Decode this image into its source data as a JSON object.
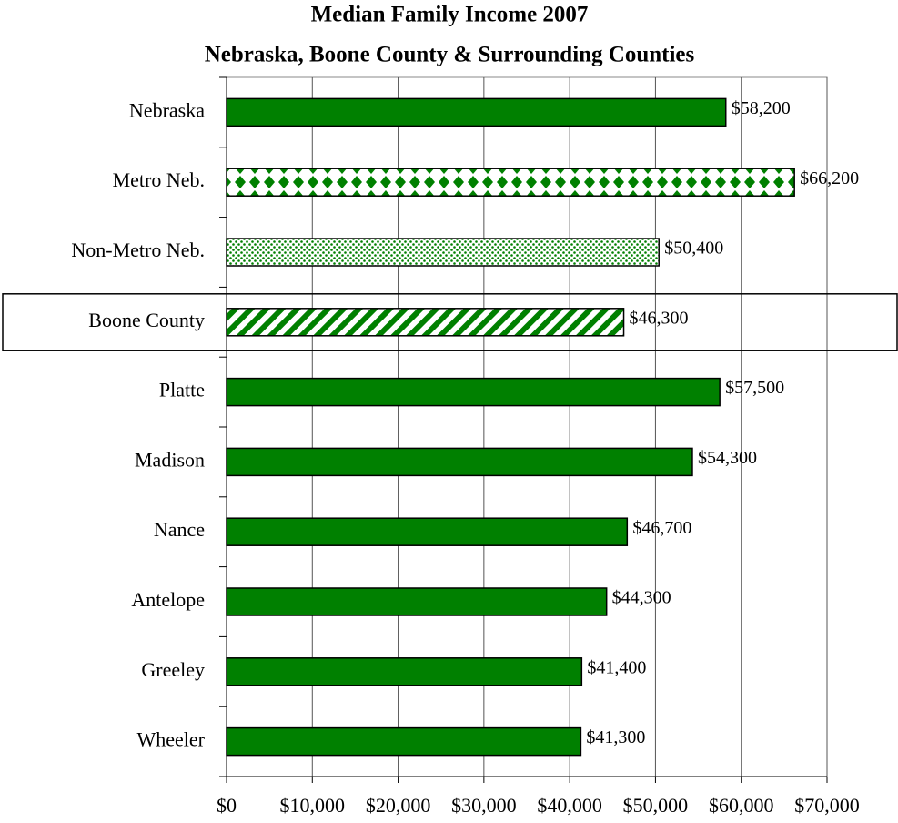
{
  "chart_data": {
    "type": "bar",
    "orientation": "horizontal",
    "title": "Median Family Income 2007",
    "subtitle": "Nebraska, Boone County & Surrounding Counties",
    "categories": [
      "Nebraska",
      "Metro Neb.",
      "Non-Metro Neb.",
      "Boone County",
      "Platte",
      "Madison",
      "Nance",
      "Antelope",
      "Greeley",
      "Wheeler"
    ],
    "values": [
      58200,
      66200,
      50400,
      46300,
      57500,
      54300,
      46700,
      44300,
      41400,
      41300
    ],
    "value_labels": [
      "$58,200",
      "$66,200",
      "$50,400",
      "$46,300",
      "$57,500",
      "$54,300",
      "$46,700",
      "$44,300",
      "$41,400",
      "$41,300"
    ],
    "patterns": [
      "solid",
      "diamonds",
      "dots",
      "stripes",
      "solid",
      "solid",
      "solid",
      "solid",
      "solid",
      "solid"
    ],
    "color": "#008000",
    "highlight": "Boone County",
    "xlim": [
      0,
      70000
    ],
    "xticks": [
      {
        "value": 0,
        "label": "$0"
      },
      {
        "value": 10000,
        "label": "$10,000"
      },
      {
        "value": 20000,
        "label": "$20,000"
      },
      {
        "value": 30000,
        "label": "$30,000"
      },
      {
        "value": 40000,
        "label": "$40,000"
      },
      {
        "value": 50000,
        "label": "$50,000"
      },
      {
        "value": 60000,
        "label": "$60,000"
      },
      {
        "value": 70000,
        "label": "$70,000"
      }
    ],
    "grid": true
  }
}
